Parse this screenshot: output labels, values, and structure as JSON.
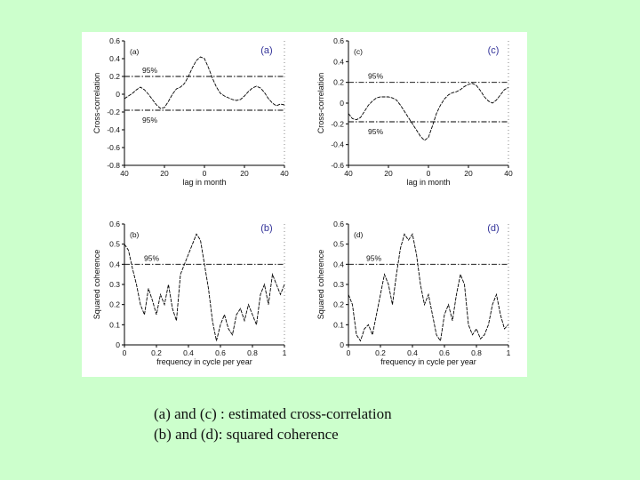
{
  "caption": {
    "line1": "(a) and (c) : estimated cross-correlation",
    "line2": "(b) and (d): squared coherence"
  },
  "colors": {
    "background": "#ccffcc",
    "panel_label": "#333399",
    "curve": "#000000"
  },
  "chart_data": [
    {
      "id": "a",
      "type": "line",
      "label": "(a)",
      "inner_label": "(a)",
      "xlabel": "lag in month",
      "ylabel": "Cross-correlation",
      "xlim": [
        -40,
        40
      ],
      "ylim": [
        -0.8,
        0.6
      ],
      "xticks": [
        -40,
        -20,
        0,
        20,
        40
      ],
      "xtick_labels": [
        "40",
        "20",
        "0",
        "20",
        "40"
      ],
      "yticks": [
        0.6,
        0.4,
        0.2,
        0,
        -0.2,
        -0.4,
        -0.6,
        -0.8
      ],
      "ytick_labels": [
        "0.6",
        "0.4",
        "0.2",
        "0",
        "-0.2",
        "-0.4",
        "-0.6",
        "-0.8"
      ],
      "thresholds": [
        {
          "y": 0.2,
          "label": "95%"
        },
        {
          "y": -0.18,
          "label": "95%"
        }
      ],
      "series": [
        {
          "x": [
            -40,
            -38,
            -36,
            -34,
            -32,
            -30,
            -28,
            -26,
            -24,
            -22,
            -20,
            -18,
            -16,
            -14,
            -12,
            -10,
            -8,
            -6,
            -4,
            -2,
            0,
            2,
            4,
            6,
            8,
            10,
            12,
            14,
            16,
            18,
            20,
            22,
            24,
            26,
            28,
            30,
            32,
            34,
            36,
            38,
            40
          ],
          "y": [
            -0.05,
            -0.02,
            0.01,
            0.05,
            0.08,
            0.05,
            0.0,
            -0.06,
            -0.12,
            -0.16,
            -0.15,
            -0.08,
            0.0,
            0.06,
            0.08,
            0.12,
            0.2,
            0.3,
            0.38,
            0.42,
            0.4,
            0.3,
            0.18,
            0.08,
            0.01,
            -0.02,
            -0.04,
            -0.06,
            -0.07,
            -0.06,
            -0.02,
            0.03,
            0.07,
            0.09,
            0.07,
            0.02,
            -0.05,
            -0.1,
            -0.13,
            -0.11,
            -0.12
          ]
        }
      ]
    },
    {
      "id": "c",
      "type": "line",
      "label": "(c)",
      "inner_label": "(c)",
      "xlabel": "lag in month",
      "ylabel": "Cross-correlation",
      "xlim": [
        -40,
        40
      ],
      "ylim": [
        -0.6,
        0.6
      ],
      "xticks": [
        -40,
        -20,
        0,
        20,
        40
      ],
      "xtick_labels": [
        "40",
        "20",
        "0",
        "20",
        "40"
      ],
      "yticks": [
        0.6,
        0.4,
        0.2,
        0,
        -0.2,
        -0.4,
        -0.6
      ],
      "ytick_labels": [
        "0.6",
        "0.4",
        "0.2",
        "0",
        "-0.2",
        "-0.4",
        "-0.6"
      ],
      "thresholds": [
        {
          "y": 0.2,
          "label": "95%"
        },
        {
          "y": -0.18,
          "label": "95%"
        }
      ],
      "series": [
        {
          "x": [
            -40,
            -38,
            -36,
            -34,
            -32,
            -30,
            -28,
            -26,
            -24,
            -22,
            -20,
            -18,
            -16,
            -14,
            -12,
            -10,
            -8,
            -6,
            -4,
            -2,
            0,
            2,
            4,
            6,
            8,
            10,
            12,
            14,
            16,
            18,
            20,
            22,
            24,
            26,
            28,
            30,
            32,
            34,
            36,
            38,
            40
          ],
          "y": [
            -0.1,
            -0.15,
            -0.16,
            -0.14,
            -0.08,
            -0.02,
            0.02,
            0.05,
            0.06,
            0.06,
            0.06,
            0.05,
            0.03,
            -0.02,
            -0.08,
            -0.14,
            -0.2,
            -0.26,
            -0.32,
            -0.36,
            -0.33,
            -0.22,
            -0.1,
            -0.02,
            0.04,
            0.08,
            0.1,
            0.11,
            0.13,
            0.16,
            0.18,
            0.19,
            0.17,
            0.12,
            0.06,
            0.02,
            0.0,
            0.03,
            0.08,
            0.13,
            0.15
          ]
        }
      ]
    },
    {
      "id": "b",
      "type": "line",
      "label": "(b)",
      "inner_label": "(b)",
      "xlabel": "frequency in cycle per year",
      "ylabel": "Squared coherence",
      "xlim": [
        0,
        1
      ],
      "ylim": [
        0,
        0.6
      ],
      "xticks": [
        0,
        0.2,
        0.4,
        0.6,
        0.8,
        1
      ],
      "xtick_labels": [
        "0",
        "0.2",
        "0.4",
        "0.6",
        "0.8",
        "1"
      ],
      "yticks": [
        0.6,
        0.5,
        0.4,
        0.3,
        0.2,
        0.1,
        0
      ],
      "ytick_labels": [
        "0.6",
        "0.5",
        "0.4",
        "0.3",
        "0.2",
        "0.1",
        "0"
      ],
      "thresholds": [
        {
          "y": 0.4,
          "label": "95%"
        }
      ],
      "series": [
        {
          "x": [
            0.0,
            0.025,
            0.05,
            0.075,
            0.1,
            0.125,
            0.15,
            0.175,
            0.2,
            0.225,
            0.25,
            0.275,
            0.3,
            0.325,
            0.35,
            0.375,
            0.4,
            0.425,
            0.45,
            0.475,
            0.5,
            0.525,
            0.55,
            0.575,
            0.6,
            0.625,
            0.65,
            0.675,
            0.7,
            0.725,
            0.75,
            0.775,
            0.8,
            0.825,
            0.85,
            0.875,
            0.9,
            0.925,
            0.95,
            0.975,
            1.0
          ],
          "y": [
            0.5,
            0.47,
            0.38,
            0.3,
            0.2,
            0.15,
            0.28,
            0.22,
            0.15,
            0.25,
            0.2,
            0.3,
            0.18,
            0.12,
            0.35,
            0.4,
            0.45,
            0.5,
            0.55,
            0.52,
            0.4,
            0.28,
            0.12,
            0.02,
            0.1,
            0.15,
            0.08,
            0.05,
            0.15,
            0.18,
            0.12,
            0.2,
            0.15,
            0.1,
            0.25,
            0.3,
            0.2,
            0.35,
            0.3,
            0.25,
            0.3
          ]
        }
      ]
    },
    {
      "id": "d",
      "type": "line",
      "label": "(d)",
      "inner_label": "(d)",
      "xlabel": "frequency in cycle per year",
      "ylabel": "Squared coherence",
      "xlim": [
        0,
        1
      ],
      "ylim": [
        0,
        0.6
      ],
      "xticks": [
        0,
        0.2,
        0.4,
        0.6,
        0.8,
        1
      ],
      "xtick_labels": [
        "0",
        "0.2",
        "0.4",
        "0.6",
        "0.8",
        "1"
      ],
      "yticks": [
        0.6,
        0.5,
        0.4,
        0.3,
        0.2,
        0.1,
        0
      ],
      "ytick_labels": [
        "0.6",
        "0.5",
        "0.4",
        "0.3",
        "0.2",
        "0.1",
        "0"
      ],
      "thresholds": [
        {
          "y": 0.4,
          "label": "95%"
        }
      ],
      "series": [
        {
          "x": [
            0.0,
            0.025,
            0.05,
            0.075,
            0.1,
            0.125,
            0.15,
            0.175,
            0.2,
            0.225,
            0.25,
            0.275,
            0.3,
            0.325,
            0.35,
            0.375,
            0.4,
            0.425,
            0.45,
            0.475,
            0.5,
            0.525,
            0.55,
            0.575,
            0.6,
            0.625,
            0.65,
            0.675,
            0.7,
            0.725,
            0.75,
            0.775,
            0.8,
            0.825,
            0.85,
            0.875,
            0.9,
            0.925,
            0.95,
            0.975,
            1.0
          ],
          "y": [
            0.25,
            0.2,
            0.05,
            0.02,
            0.08,
            0.1,
            0.05,
            0.15,
            0.25,
            0.35,
            0.3,
            0.2,
            0.35,
            0.48,
            0.55,
            0.52,
            0.55,
            0.45,
            0.3,
            0.2,
            0.25,
            0.15,
            0.05,
            0.02,
            0.15,
            0.2,
            0.12,
            0.25,
            0.35,
            0.3,
            0.1,
            0.05,
            0.08,
            0.03,
            0.05,
            0.1,
            0.2,
            0.25,
            0.15,
            0.08,
            0.1
          ]
        }
      ]
    }
  ]
}
